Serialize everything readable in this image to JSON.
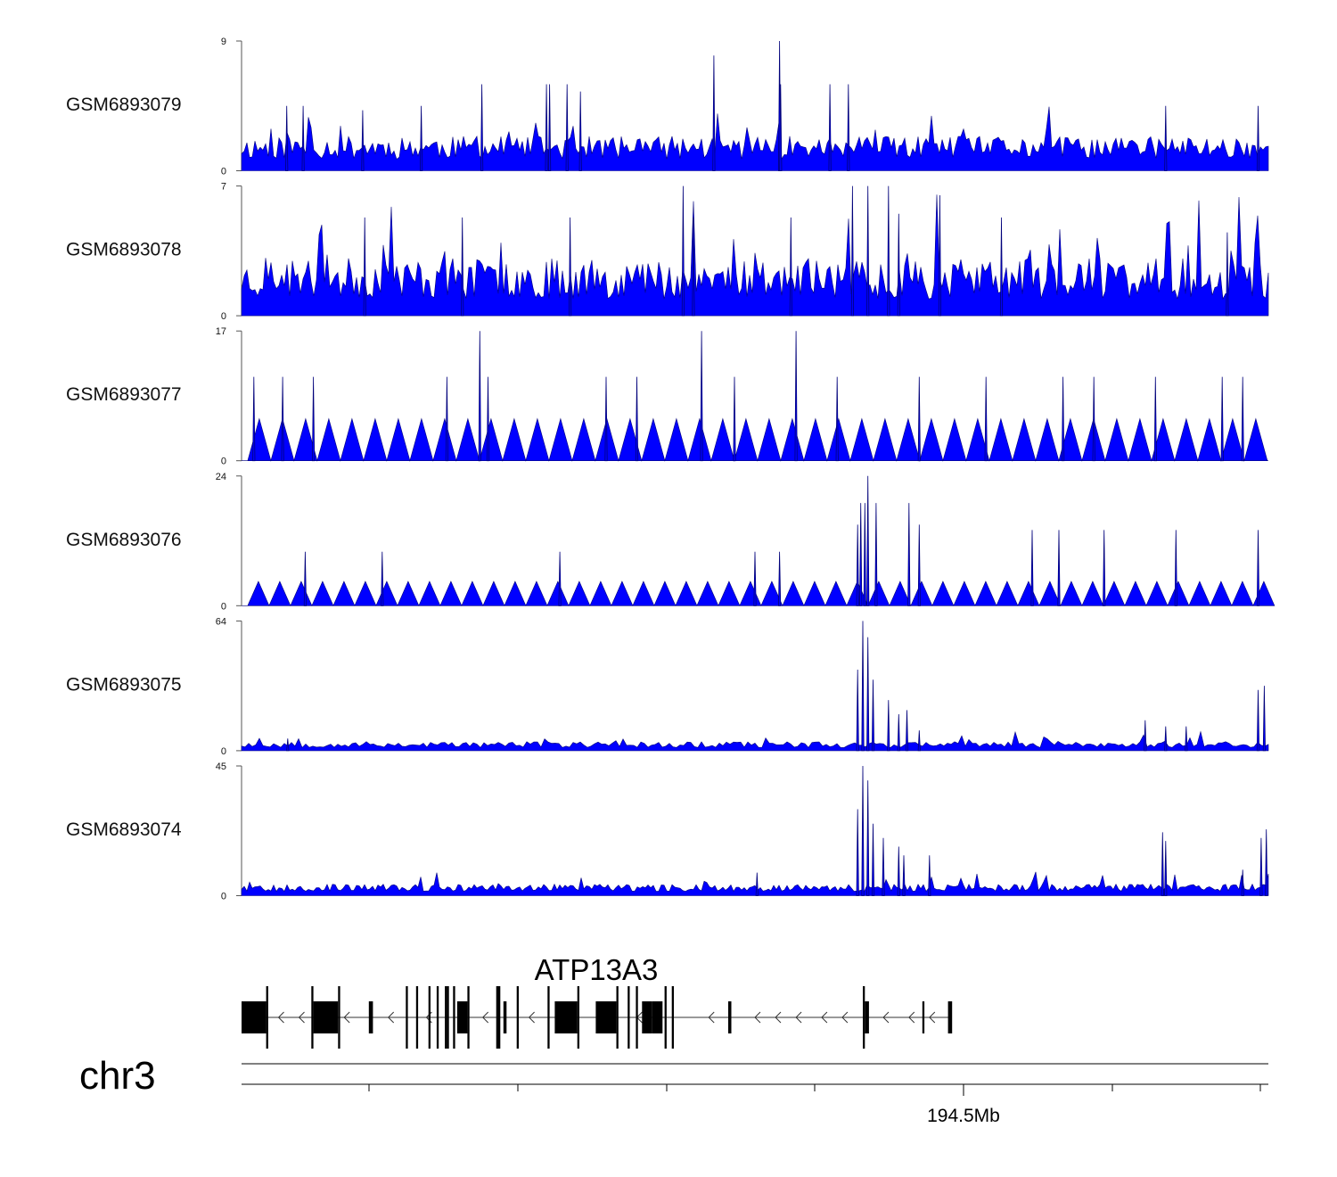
{
  "chart_data": {
    "type": "area",
    "title": "",
    "chromosome": "chr3",
    "x_axis": {
      "major_tick_label": "194.5Mb"
    },
    "fill_color": "#0000ff",
    "stroke_color": "#00007a",
    "tracks": [
      {
        "name": "GSM6893079",
        "ylim": [
          0,
          9
        ],
        "ytick_labels": [
          "9",
          "0"
        ],
        "baseline": 0.8,
        "noise": 1.6,
        "seed": 11,
        "step": 3,
        "peaks": [
          [
            0.044,
            4.5
          ],
          [
            0.06,
            4.5
          ],
          [
            0.118,
            4.2
          ],
          [
            0.175,
            4.5
          ],
          [
            0.234,
            6
          ],
          [
            0.297,
            6
          ],
          [
            0.3,
            6
          ],
          [
            0.317,
            6
          ],
          [
            0.33,
            5.5
          ],
          [
            0.46,
            8
          ],
          [
            0.524,
            9
          ],
          [
            0.525,
            6
          ],
          [
            0.573,
            6
          ],
          [
            0.591,
            6
          ],
          [
            0.9,
            4.5
          ],
          [
            0.99,
            4.5
          ]
        ]
      },
      {
        "name": "GSM6893078",
        "ylim": [
          0,
          7
        ],
        "ytick_labels": [
          "7",
          "0"
        ],
        "baseline": 0.9,
        "noise": 2.2,
        "seed": 23,
        "step": 3,
        "peaks": [
          [
            0.12,
            5.3
          ],
          [
            0.215,
            5.3
          ],
          [
            0.32,
            5.3
          ],
          [
            0.43,
            7
          ],
          [
            0.44,
            5.3
          ],
          [
            0.535,
            5.3
          ],
          [
            0.595,
            7
          ],
          [
            0.61,
            7
          ],
          [
            0.63,
            7
          ],
          [
            0.64,
            5.5
          ],
          [
            0.68,
            6.5
          ],
          [
            0.74,
            5.3
          ],
          [
            0.96,
            4.5
          ]
        ]
      },
      {
        "name": "GSM6893077",
        "ylim": [
          0,
          17
        ],
        "ytick_labels": [
          "17",
          "0"
        ],
        "baseline": 0,
        "noise": 0,
        "seed": 37,
        "step": 26,
        "tri_height": 5.5,
        "peaks": [
          [
            0.012,
            11
          ],
          [
            0.04,
            11
          ],
          [
            0.07,
            11
          ],
          [
            0.2,
            11
          ],
          [
            0.232,
            17
          ],
          [
            0.24,
            11
          ],
          [
            0.355,
            11
          ],
          [
            0.385,
            11
          ],
          [
            0.448,
            17
          ],
          [
            0.48,
            11
          ],
          [
            0.54,
            17
          ],
          [
            0.58,
            11
          ],
          [
            0.66,
            11
          ],
          [
            0.725,
            11
          ],
          [
            0.8,
            11
          ],
          [
            0.83,
            11
          ],
          [
            0.89,
            11
          ],
          [
            0.955,
            11
          ],
          [
            0.975,
            11
          ]
        ]
      },
      {
        "name": "GSM6893076",
        "ylim": [
          0,
          24
        ],
        "ytick_labels": [
          "24",
          "0"
        ],
        "baseline": 0,
        "noise": 0,
        "seed": 41,
        "step": 24,
        "tri_height": 4.5,
        "peaks": [
          [
            0.062,
            10
          ],
          [
            0.137,
            10
          ],
          [
            0.31,
            10
          ],
          [
            0.5,
            10
          ],
          [
            0.524,
            10
          ],
          [
            0.6,
            15
          ],
          [
            0.603,
            19
          ],
          [
            0.607,
            19
          ],
          [
            0.61,
            24
          ],
          [
            0.618,
            19
          ],
          [
            0.65,
            19
          ],
          [
            0.66,
            15
          ],
          [
            0.77,
            14
          ],
          [
            0.796,
            14
          ],
          [
            0.84,
            14
          ],
          [
            0.91,
            14
          ],
          [
            0.99,
            14
          ]
        ]
      },
      {
        "name": "GSM6893075",
        "ylim": [
          0,
          64
        ],
        "ytick_labels": [
          "64",
          "0"
        ],
        "baseline": 1.5,
        "noise": 3,
        "seed": 53,
        "step": 4,
        "peaks": [
          [
            0.045,
            6
          ],
          [
            0.6,
            40
          ],
          [
            0.605,
            64
          ],
          [
            0.61,
            56
          ],
          [
            0.615,
            35
          ],
          [
            0.63,
            25
          ],
          [
            0.64,
            18
          ],
          [
            0.648,
            20
          ],
          [
            0.66,
            10
          ],
          [
            0.88,
            15
          ],
          [
            0.9,
            12
          ],
          [
            0.92,
            12
          ],
          [
            0.99,
            30
          ],
          [
            0.996,
            32
          ]
        ]
      },
      {
        "name": "GSM6893074",
        "ylim": [
          0,
          45
        ],
        "ytick_labels": [
          "45",
          "0"
        ],
        "baseline": 1.5,
        "noise": 2.5,
        "seed": 67,
        "step": 3,
        "peaks": [
          [
            0.502,
            8
          ],
          [
            0.6,
            30
          ],
          [
            0.605,
            45
          ],
          [
            0.61,
            40
          ],
          [
            0.615,
            25
          ],
          [
            0.625,
            20
          ],
          [
            0.64,
            17
          ],
          [
            0.645,
            14
          ],
          [
            0.67,
            14
          ],
          [
            0.897,
            22
          ],
          [
            0.9,
            19
          ],
          [
            0.975,
            9
          ],
          [
            0.993,
            20
          ],
          [
            0.998,
            23
          ]
        ]
      }
    ],
    "gene": {
      "name": "ATP13A3",
      "strand": "-",
      "blocks": [
        [
          0,
          0.024,
          "big"
        ],
        [
          0.024,
          0.026,
          "thin"
        ],
        [
          0.068,
          0.07,
          "thin"
        ],
        [
          0.07,
          0.094,
          "big"
        ],
        [
          0.094,
          0.096,
          "thin"
        ],
        [
          0.124,
          0.128,
          "mid"
        ],
        [
          0.16,
          0.162,
          "thin"
        ],
        [
          0.17,
          0.172,
          "thin"
        ],
        [
          0.182,
          0.184,
          "thin"
        ],
        [
          0.19,
          0.192,
          "thin"
        ],
        [
          0.198,
          0.2,
          "thin"
        ],
        [
          0.2,
          0.202,
          "thin"
        ],
        [
          0.206,
          0.208,
          "thin"
        ],
        [
          0.21,
          0.22,
          "mid"
        ],
        [
          0.22,
          0.222,
          "thin"
        ],
        [
          0.248,
          0.252,
          "thin"
        ],
        [
          0.255,
          0.258,
          "mid"
        ],
        [
          0.268,
          0.27,
          "thin"
        ],
        [
          0.298,
          0.3,
          "thin"
        ],
        [
          0.305,
          0.327,
          "big"
        ],
        [
          0.327,
          0.329,
          "thin"
        ],
        [
          0.345,
          0.365,
          "big"
        ],
        [
          0.365,
          0.367,
          "thin"
        ],
        [
          0.376,
          0.378,
          "thin"
        ],
        [
          0.384,
          0.386,
          "thin"
        ],
        [
          0.39,
          0.4,
          "big"
        ],
        [
          0.4,
          0.41,
          "mid"
        ],
        [
          0.412,
          0.414,
          "thin"
        ],
        [
          0.419,
          0.421,
          "thin"
        ],
        [
          0.474,
          0.477,
          "mid"
        ],
        [
          0.605,
          0.607,
          "thin"
        ],
        [
          0.607,
          0.611,
          "mid"
        ],
        [
          0.663,
          0.665,
          "mid"
        ],
        [
          0.688,
          0.692,
          "mid"
        ]
      ],
      "arrows_x": [
        0.036,
        0.056,
        0.1,
        0.143,
        0.18,
        0.235,
        0.28,
        0.32,
        0.385,
        0.455,
        0.5,
        0.52,
        0.54,
        0.565,
        0.585,
        0.625,
        0.65,
        0.67
      ]
    }
  }
}
